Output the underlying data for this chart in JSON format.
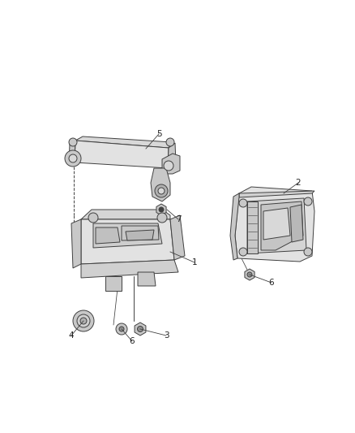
{
  "background_color": "#ffffff",
  "line_color": "#404040",
  "label_color": "#222222",
  "fig_width": 4.38,
  "fig_height": 5.33,
  "dpi": 100,
  "label_fontsize": 7.5,
  "lw": 0.7,
  "fill_light": "#e2e2e2",
  "fill_mid": "#c8c8c8",
  "fill_dark": "#aaaaaa",
  "fill_inner": "#d8d8d8"
}
